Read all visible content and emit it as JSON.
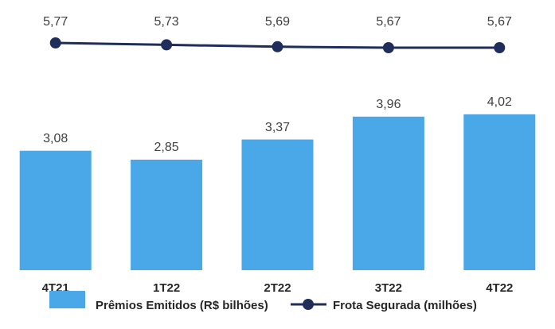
{
  "chart_data": {
    "type": "bar-line",
    "categories": [
      "4T21",
      "1T22",
      "2T22",
      "3T22",
      "4T22"
    ],
    "series": [
      {
        "name": "Prêmios Emitidos (R$ bilhões)",
        "color": "#4aa8e8",
        "type": "bar",
        "values": [
          3.08,
          2.85,
          3.37,
          3.96,
          4.02
        ],
        "value_labels": [
          "3,08",
          "2,85",
          "3,37",
          "3,96",
          "4,02"
        ]
      },
      {
        "name": "Frota Segurada (milhões)",
        "color": "#1f2d5a",
        "type": "line",
        "axis": "y2",
        "values": [
          5.77,
          5.73,
          5.69,
          5.67,
          5.67
        ],
        "value_labels": [
          "5,77",
          "5,73",
          "5,69",
          "5,67",
          "5,67"
        ]
      }
    ]
  }
}
